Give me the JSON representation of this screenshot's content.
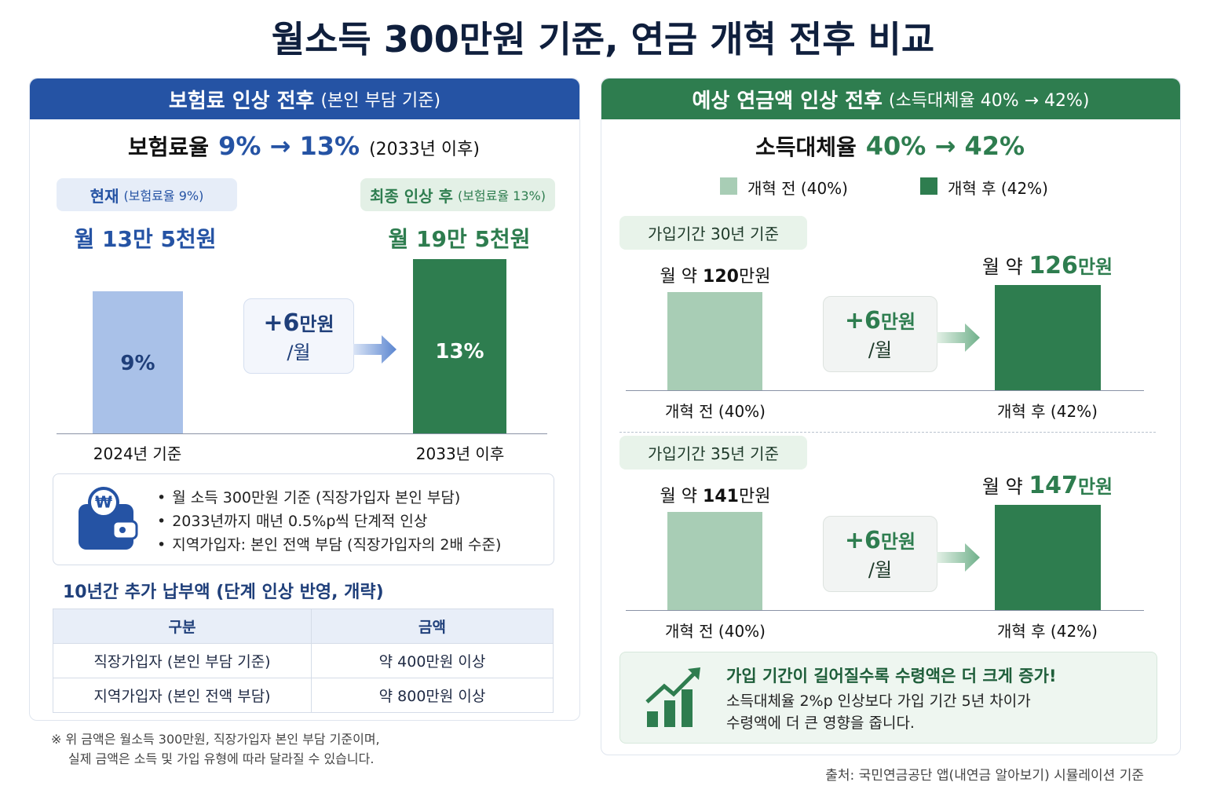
{
  "title": "월소득 300만원 기준, 연금 개혁 전후 비교",
  "left": {
    "header": "보험료 인상 전후",
    "header_note": "(본인 부담 기준)",
    "rate_label": "보험료율",
    "rate_change": "9% → 13%",
    "rate_note": "(2033년 이후)",
    "before": {
      "tag": "현재",
      "tag_note": "(보험료율 9%)",
      "amount": "월 13만 5천원",
      "bar_label": "9%",
      "axis_label": "2024년 기준"
    },
    "after": {
      "tag": "최종 인상 후",
      "tag_note": "(보험료율 13%)",
      "amount": "월 19만 5천원",
      "bar_label": "13%",
      "axis_label": "2033년 이후"
    },
    "diff": {
      "value": "+6",
      "unit": "만원",
      "per": "/월"
    },
    "currency_icon": "₩",
    "notes": [
      "월 소득 300만원 기준 (직장가입자 본인 부담)",
      "2033년까지 매년 0.5%p씩 단계적 인상",
      "지역가입자: 본인 전액 부담 (직장가입자의 2배 수준)"
    ],
    "table": {
      "title": "10년간 추가 납부액 (단계 인상 반영, 개략)",
      "header": [
        "구분",
        "금액"
      ],
      "rows": [
        [
          "직장가입자 (본인 부담 기준)",
          "약 400만원 이상"
        ],
        [
          "지역가입자 (본인 전액 부담)",
          "약 800만원 이상"
        ]
      ]
    },
    "footnote": [
      "※ 위 금액은 월소득 300만원, 직장가입자 본인 부담 기준이며,",
      "실제 금액은 소득 및 가입 유형에 따라 달라질 수 있습니다."
    ]
  },
  "right": {
    "header": "예상 연금액 인상 전후",
    "header_note": "(소득대체율 40% → 42%)",
    "rate_label": "소득대체율",
    "rate_change": "40% → 42%",
    "legend": [
      "개혁 전 (40%)",
      "개혁 후 (42%)"
    ],
    "sections": [
      {
        "tag": "가입기간 30년 기준",
        "before": {
          "prefix": "월 약",
          "value": "120",
          "unit": "만원",
          "axis_label": "개혁 전 (40%)"
        },
        "after": {
          "prefix": "월 약",
          "value": "126",
          "unit": "만원",
          "axis_label": "개혁 후 (42%)"
        },
        "diff": {
          "value": "+6",
          "unit": "만원",
          "per": "/월"
        }
      },
      {
        "tag": "가입기간 35년 기준",
        "before": {
          "prefix": "월 약",
          "value": "141",
          "unit": "만원",
          "axis_label": "개혁 전 (40%)"
        },
        "after": {
          "prefix": "월 약",
          "value": "147",
          "unit": "만원",
          "axis_label": "개혁 후 (42%)"
        },
        "diff": {
          "value": "+6",
          "unit": "만원",
          "per": "/월"
        }
      }
    ],
    "insight": {
      "headline": "가입 기간이 길어질수록 수령액은 더 크게 증가!",
      "lines": [
        "소득대체율 2%p 인상보다 가입 기간 5년 차이가",
        "수령액에 더 큰 영향을 줍니다."
      ]
    }
  },
  "source": "출처: 국민연금공단 앱(내연금 알아보기) 시뮬레이션 기준"
}
